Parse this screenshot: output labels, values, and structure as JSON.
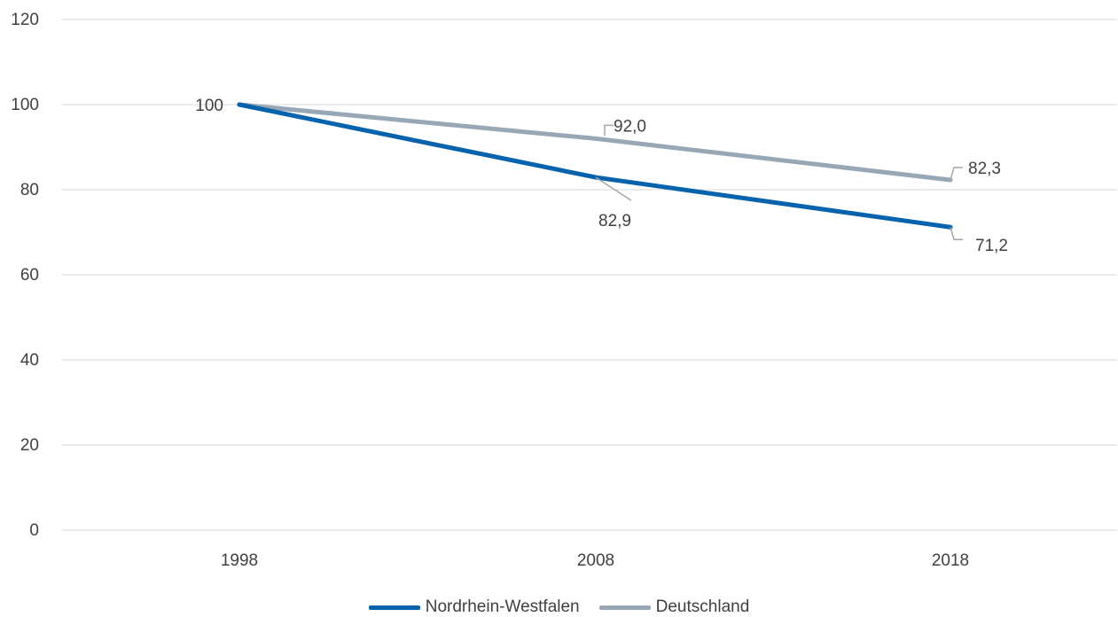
{
  "chart_data": {
    "type": "line",
    "categories": [
      "1998",
      "2008",
      "2018"
    ],
    "ylim": [
      0,
      120
    ],
    "yticks": [
      0,
      20,
      40,
      60,
      80,
      100,
      120
    ],
    "y_tick_labels": [
      "0",
      "20",
      "40",
      "60",
      "80",
      "100",
      "120"
    ],
    "grid": true,
    "legend_position": "bottom",
    "series": [
      {
        "name": "Nordrhein-Westfalen",
        "values": [
          100,
          82.9,
          71.2
        ],
        "labels": [
          "100",
          "82,9",
          "71,2"
        ],
        "color": "#0563AE"
      },
      {
        "name": "Deutschland",
        "values": [
          100,
          92.0,
          82.3
        ],
        "labels": [
          "",
          "92,0",
          "82,3"
        ],
        "color": "#97A7B5"
      }
    ]
  },
  "colors": {
    "grid": "#D9D9D9",
    "text": "#404040",
    "leader": "#A6A6A6"
  }
}
